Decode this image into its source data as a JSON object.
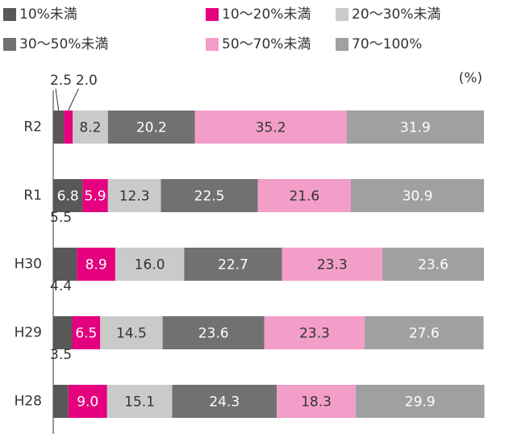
{
  "chart_data": {
    "type": "stacked_bar_horizontal",
    "unit_label": "(%)",
    "categories": [
      "R2",
      "R1",
      "H30",
      "H29",
      "H28"
    ],
    "xlim": [
      0,
      100
    ],
    "series": [
      {
        "name": "10%未満",
        "color": "#595757",
        "values": [
          2.5,
          6.8,
          5.5,
          4.4,
          3.5
        ],
        "value_labels": [
          "2.5",
          "6.8",
          "5.5",
          "4.4",
          "3.5"
        ]
      },
      {
        "name": "10〜20%未満",
        "color": "#e4007f",
        "values": [
          2.0,
          5.9,
          8.9,
          6.5,
          9.0
        ],
        "value_labels": [
          "2.0",
          "5.9",
          "8.9",
          "6.5",
          "9.0"
        ]
      },
      {
        "name": "20〜30%未満",
        "color": "#c9caca",
        "values": [
          8.2,
          12.3,
          16.0,
          14.5,
          15.1
        ],
        "value_labels": [
          "8.2",
          "12.3",
          "16.0",
          "14.5",
          "15.1"
        ]
      },
      {
        "name": "30〜50%未満",
        "color": "#727171",
        "values": [
          20.2,
          22.5,
          22.7,
          23.6,
          24.3
        ],
        "value_labels": [
          "20.2",
          "22.5",
          "22.7",
          "23.6",
          "24.3"
        ]
      },
      {
        "name": "50〜70%未満",
        "color": "#f29ec8",
        "values": [
          35.2,
          21.6,
          23.3,
          23.3,
          18.3
        ],
        "value_labels": [
          "35.2",
          "21.6",
          "23.3",
          "23.3",
          "18.3"
        ]
      },
      {
        "name": "70〜100%",
        "color": "#9fa0a0",
        "values": [
          31.9,
          30.9,
          23.6,
          27.6,
          29.9
        ],
        "value_labels": [
          "31.9",
          "30.9",
          "23.6",
          "27.6",
          "29.9"
        ]
      }
    ]
  }
}
